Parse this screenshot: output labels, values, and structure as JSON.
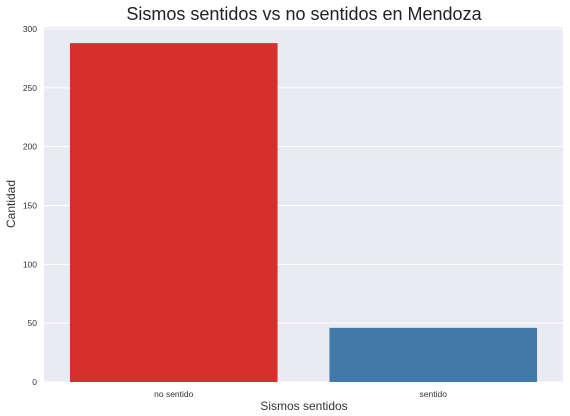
{
  "chart_data": {
    "type": "bar",
    "title": "Sismos sentidos vs no sentidos en Mendoza",
    "xlabel": "Sismos sentidos",
    "ylabel": "Cantidad",
    "categories": [
      "no sentido",
      "sentido"
    ],
    "values": [
      288,
      46
    ],
    "colors": [
      "#d62f2e",
      "#4279ab"
    ],
    "ylim": [
      0,
      300
    ],
    "yticks": [
      "0",
      "50",
      "100",
      "150",
      "200",
      "250",
      "300"
    ],
    "grid": true,
    "background": "#eaeaf2"
  }
}
